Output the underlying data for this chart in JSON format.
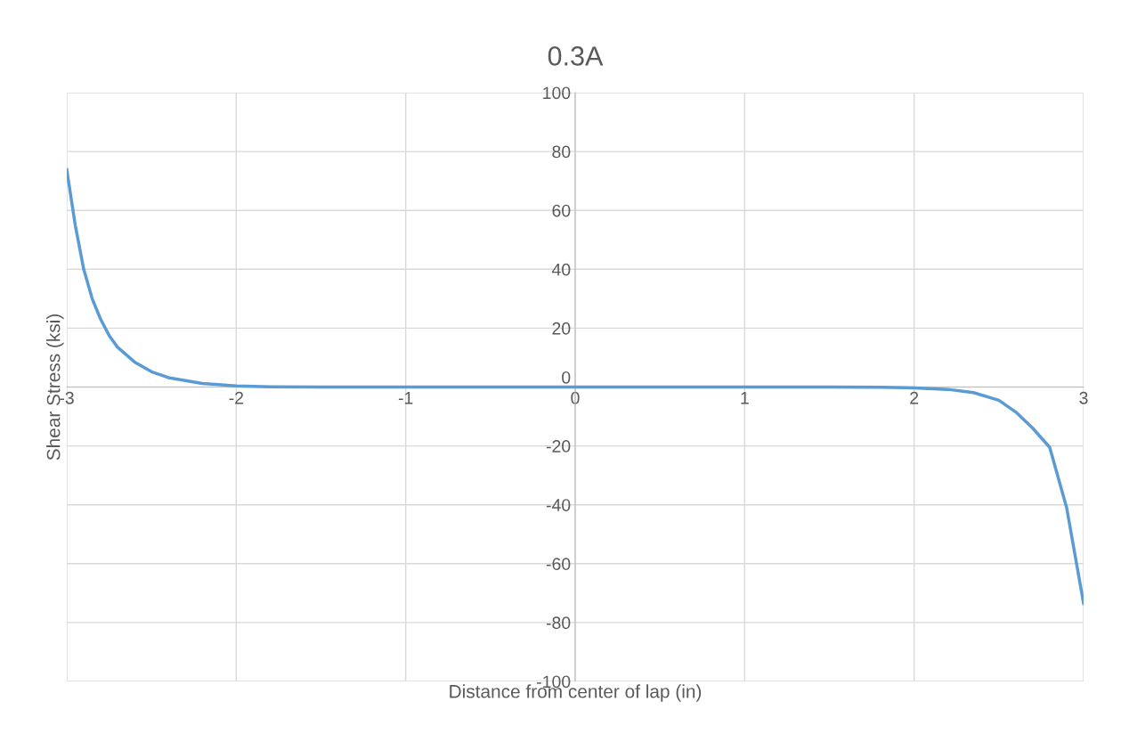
{
  "chart_data": {
    "type": "line",
    "title": "0.3A",
    "xlabel": "Distance from center of lap (in)",
    "ylabel": "Shear Stress (ksi)",
    "x": [
      -3,
      -2.95,
      -2.9,
      -2.85,
      -2.8,
      -2.75,
      -2.7,
      -2.6,
      -2.5,
      -2.4,
      -2.2,
      -2.0,
      -1.8,
      -1.5,
      -1,
      0,
      1,
      1.5,
      1.8,
      2.0,
      2.2,
      2.35,
      2.5,
      2.6,
      2.7,
      2.8,
      2.9,
      3.0
    ],
    "series": [
      {
        "color": "#5b9bd5",
        "values": [
          73.8,
          55,
          40,
          30,
          23,
          17.5,
          13.5,
          8.5,
          5.2,
          3.2,
          1.2,
          0.4,
          0.1,
          0,
          0,
          0,
          0,
          0,
          -0.1,
          -0.3,
          -0.8,
          -1.9,
          -4.5,
          -8.5,
          -14,
          -20.5,
          -41,
          -73.5
        ]
      }
    ],
    "xlim": [
      -3,
      3
    ],
    "xticks": [
      -3,
      -2,
      -1,
      0,
      1,
      2,
      3
    ],
    "ylim": [
      -100,
      100
    ],
    "yticks": [
      -100,
      -80,
      -60,
      -40,
      -20,
      0,
      20,
      40,
      60,
      80,
      100
    ],
    "grid": true,
    "legend": false,
    "marker": "none",
    "line_style": "solid"
  }
}
